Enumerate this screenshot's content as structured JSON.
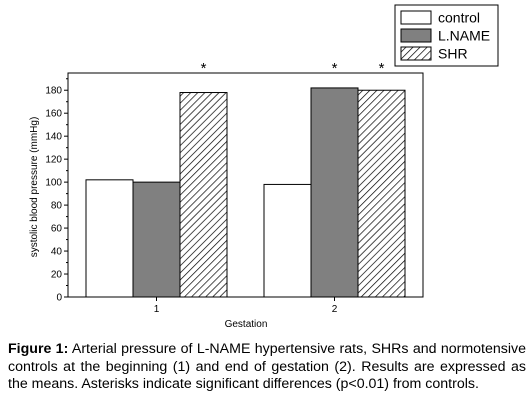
{
  "chart_data": {
    "type": "bar",
    "categories": [
      "1",
      "2"
    ],
    "series": [
      {
        "name": "control",
        "values": [
          102,
          98
        ],
        "fill": "#ffffff"
      },
      {
        "name": "L.NAME",
        "values": [
          100,
          182
        ],
        "fill": "#808080"
      },
      {
        "name": "SHR",
        "values": [
          178,
          180
        ],
        "fill": "hatch"
      }
    ],
    "significance": [
      {
        "category": "1",
        "series": "SHR",
        "marker": "*"
      },
      {
        "category": "2",
        "series": "L.NAME",
        "marker": "*"
      },
      {
        "category": "2",
        "series": "SHR",
        "marker": "*"
      }
    ],
    "xlabel": "Gestation",
    "ylabel": "systolic blood pressure (mmHg)",
    "ylim": [
      0,
      195
    ],
    "yticks": [
      0,
      20,
      40,
      60,
      80,
      100,
      120,
      140,
      160,
      180
    ],
    "legend_position": "top-right",
    "grid": false
  },
  "caption": {
    "label": "Figure 1:",
    "text": " Arterial pressure of L-NAME hypertensive rats, SHRs and normotensive controls at the beginning (1) and end of gestation (2). Results are expressed as the means. Asterisks indicate significant differences (p<0.01) from controls."
  }
}
